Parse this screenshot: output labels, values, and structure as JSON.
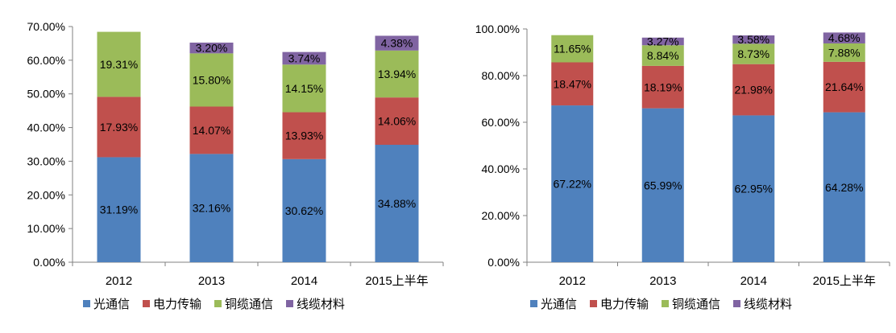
{
  "legend_labels": [
    "光通信",
    "电力传输",
    "铜缆通信",
    "线缆材料"
  ],
  "colors": {
    "optical": "#4f81bd",
    "power": "#c0504d",
    "copper": "#9bbb59",
    "material": "#8064a2",
    "axis": "#808080"
  },
  "chart_data": [
    {
      "type": "bar",
      "stacked": true,
      "categories": [
        "2012",
        "2013",
        "2014",
        "2015上半年"
      ],
      "ylim": [
        0,
        70
      ],
      "yticks": [
        "0.00%",
        "10.00%",
        "20.00%",
        "30.00%",
        "40.00%",
        "50.00%",
        "60.00%",
        "70.00%"
      ],
      "legend_position": "bottom",
      "series": [
        {
          "name": "光通信",
          "values": [
            31.19,
            32.16,
            30.62,
            34.88
          ],
          "labels": [
            "31.19%",
            "32.16%",
            "30.62%",
            "34.88%"
          ]
        },
        {
          "name": "电力传输",
          "values": [
            17.93,
            14.07,
            13.93,
            14.06
          ],
          "labels": [
            "17.93%",
            "14.07%",
            "13.93%",
            "14.06%"
          ]
        },
        {
          "name": "铜缆通信",
          "values": [
            19.31,
            15.8,
            14.15,
            13.94
          ],
          "labels": [
            "19.31%",
            "15.80%",
            "14.15%",
            "13.94%"
          ]
        },
        {
          "name": "线缆材料",
          "values": [
            null,
            3.2,
            3.74,
            4.38
          ],
          "labels": [
            "",
            "3.20%",
            "3.74%",
            "4.38%"
          ]
        }
      ]
    },
    {
      "type": "bar",
      "stacked": true,
      "categories": [
        "2012",
        "2013",
        "2014",
        "2015上半年"
      ],
      "ylim": [
        0,
        100
      ],
      "yticks": [
        "0.00%",
        "20.00%",
        "40.00%",
        "60.00%",
        "80.00%",
        "100.00%"
      ],
      "legend_position": "bottom",
      "series": [
        {
          "name": "光通信",
          "values": [
            67.22,
            65.99,
            62.95,
            64.28
          ],
          "labels": [
            "67.22%",
            "65.99%",
            "62.95%",
            "64.28%"
          ]
        },
        {
          "name": "电力传输",
          "values": [
            18.47,
            18.19,
            21.98,
            21.64
          ],
          "labels": [
            "18.47%",
            "18.19%",
            "21.98%",
            "21.64%"
          ]
        },
        {
          "name": "铜缆通信",
          "values": [
            11.65,
            8.84,
            8.73,
            7.88
          ],
          "labels": [
            "11.65%",
            "8.84%",
            "8.73%",
            "7.88%"
          ]
        },
        {
          "name": "线缆材料",
          "values": [
            null,
            3.27,
            3.58,
            4.68
          ],
          "labels": [
            "",
            "3.27%",
            "3.58%",
            "4.68%"
          ]
        }
      ]
    }
  ]
}
